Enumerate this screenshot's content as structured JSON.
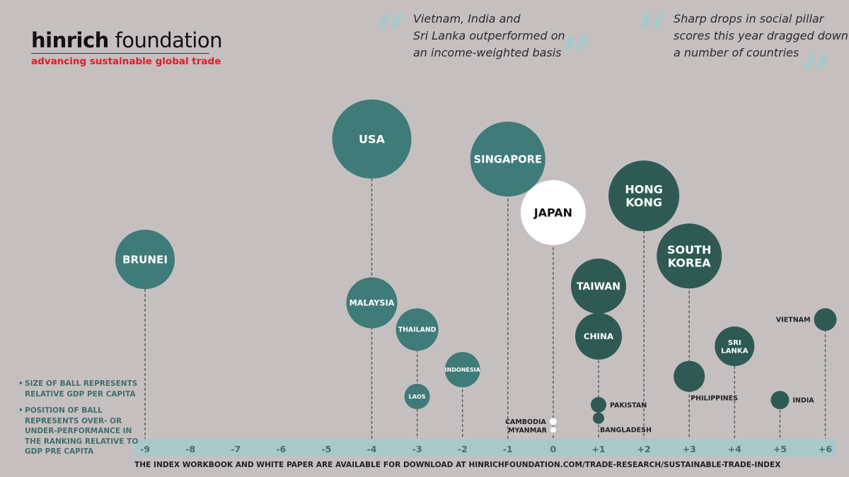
{
  "brand": {
    "name_bold": "hinrich",
    "name_rest": "foundation",
    "tagline": "advancing sustainable global trade"
  },
  "quotes": [
    {
      "lines": [
        "Vietnam, India and",
        "Sri Lanka outperformed on",
        "an income-weighted basis"
      ]
    },
    {
      "lines": [
        "Sharp drops in social pillar",
        "scores this year dragged down",
        "a number of countries"
      ]
    }
  ],
  "legend": [
    "SIZE OF BALL REPRESENTS RELATIVE GDP PER CAPITA",
    "POSITION OF BALL REPRESENTS OVER- OR UNDER-PERFORMANCE IN THE RANKING RELATIVE TO GDP PRE CAPITA"
  ],
  "footer": "THE INDEX WORKBOOK AND WHITE PAPER ARE AVAILABLE FOR DOWNLOAD AT HINRICHFOUNDATION.COM/TRADE-RESEARCH/SUSTAINABLE-TRADE-INDEX",
  "colors": {
    "background": "#c6bfbf",
    "axis_band": "#a9c8c9",
    "teal_light": "#3f7b78",
    "teal_dark": "#2f5a54",
    "highlight": "#ffffff",
    "accent_red": "#e01c24"
  },
  "chart_data": {
    "type": "scatter",
    "title": "",
    "xlabel": "",
    "ylabel": "",
    "x_ticks": [
      "-9",
      "-8",
      "-7",
      "-6",
      "-5",
      "-4",
      "-3",
      "-2",
      "-1",
      "0",
      "+1",
      "+2",
      "+3",
      "+4",
      "+5",
      "+6"
    ],
    "xlim": [
      -9,
      6
    ],
    "size_meaning": "relative GDP per capita",
    "position_meaning": "over- or under-performance in the ranking relative to GDP per capita",
    "points": [
      {
        "name": "BRUNEI",
        "x": -9,
        "size": 42,
        "level": 0.52,
        "color": "teal_light",
        "label": "inside"
      },
      {
        "name": "USA",
        "x": -4,
        "size": 56,
        "level": 0.88,
        "color": "teal_light",
        "label": "inside"
      },
      {
        "name": "MALAYSIA",
        "x": -4,
        "size": 36,
        "level": 0.39,
        "color": "teal_light",
        "label": "inside"
      },
      {
        "name": "THAILAND",
        "x": -3,
        "size": 30,
        "level": 0.31,
        "color": "teal_light",
        "label": "inside"
      },
      {
        "name": "LAOS",
        "x": -3,
        "size": 18,
        "level": 0.11,
        "color": "teal_light",
        "label": "inside"
      },
      {
        "name": "INDONESIA",
        "x": -2,
        "size": 25,
        "level": 0.19,
        "color": "teal_light",
        "label": "inside"
      },
      {
        "name": "SINGAPORE",
        "x": -1,
        "size": 53,
        "level": 0.82,
        "color": "teal_light",
        "label": "inside"
      },
      {
        "name": "JAPAN",
        "x": 0,
        "size": 46,
        "level": 0.66,
        "color": "highlight",
        "label": "inside"
      },
      {
        "name": "CAMBODIA",
        "x": 0,
        "size": 5,
        "level": 0.035,
        "color": "highlight",
        "label": "left"
      },
      {
        "name": "MYANMAR",
        "x": 0,
        "size": 4,
        "level": 0.01,
        "color": "highlight",
        "label": "left"
      },
      {
        "name": "HONG KONG",
        "x": 2,
        "size": 50,
        "level": 0.71,
        "color": "teal_dark",
        "label": "inside"
      },
      {
        "name": "TAIWAN",
        "x": 1,
        "size": 39,
        "level": 0.44,
        "color": "teal_dark",
        "label": "inside"
      },
      {
        "name": "CHINA",
        "x": 1,
        "size": 33,
        "level": 0.29,
        "color": "teal_dark",
        "label": "inside"
      },
      {
        "name": "PAKISTAN",
        "x": 1,
        "size": 11,
        "level": 0.085,
        "color": "teal_dark",
        "label": "right"
      },
      {
        "name": "BANGLADESH",
        "x": 1,
        "size": 8,
        "level": 0.045,
        "color": "teal_dark",
        "label": "below-right"
      },
      {
        "name": "SOUTH KOREA",
        "x": 3,
        "size": 46,
        "level": 0.53,
        "color": "teal_dark",
        "label": "inside"
      },
      {
        "name": "PHILIPPINES",
        "x": 3,
        "size": 22,
        "level": 0.17,
        "color": "teal_dark",
        "label": "below-right"
      },
      {
        "name": "SRI LANKA",
        "x": 4,
        "size": 28,
        "level": 0.26,
        "color": "teal_dark",
        "label": "inside"
      },
      {
        "name": "INDIA",
        "x": 5,
        "size": 13,
        "level": 0.099,
        "color": "teal_dark",
        "label": "right"
      },
      {
        "name": "VIETNAM",
        "x": 6,
        "size": 16,
        "level": 0.34,
        "color": "teal_dark",
        "label": "left"
      }
    ]
  }
}
